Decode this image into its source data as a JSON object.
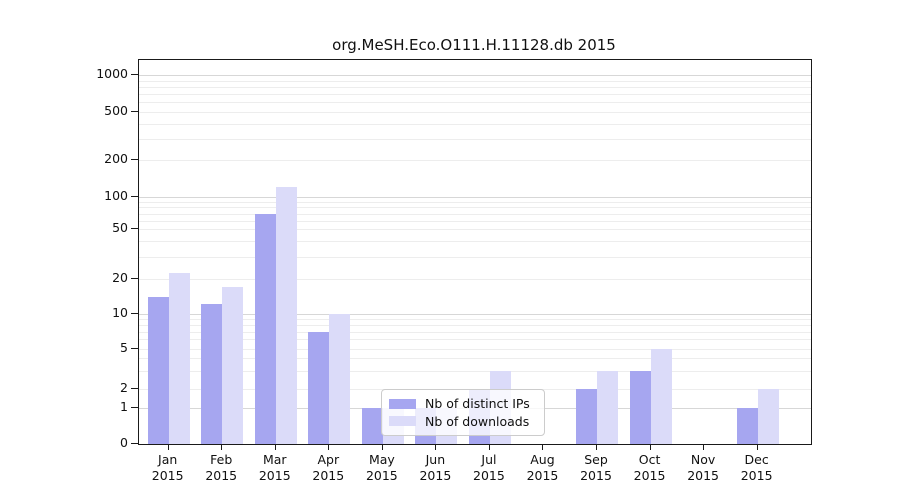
{
  "chart_data": {
    "type": "bar",
    "title": "org.MeSH.Eco.O111.H.11128.db 2015",
    "year_label": "2015",
    "categories": [
      "Jan",
      "Feb",
      "Mar",
      "Apr",
      "May",
      "Jun",
      "Jul",
      "Aug",
      "Sep",
      "Oct",
      "Nov",
      "Dec"
    ],
    "series": [
      {
        "name": "Nb of distinct IPs",
        "color": "#a6a6f0",
        "values": [
          14,
          12,
          70,
          7,
          1,
          1,
          2,
          0,
          2,
          3,
          0,
          1
        ]
      },
      {
        "name": "Nb of downloads",
        "color": "#dbdbf9",
        "values": [
          22,
          17,
          120,
          10,
          1,
          1,
          3,
          0,
          3,
          5,
          0,
          2
        ]
      }
    ],
    "yaxis": {
      "scale": "log-like with labeled ticks",
      "ticks": [
        0,
        1,
        2,
        5,
        10,
        20,
        50,
        100,
        200,
        500,
        1000
      ],
      "ylim": [
        0,
        1300
      ]
    },
    "xlabel": "",
    "ylabel": "",
    "grid": "horizontal, minor log gridlines",
    "legend_position": "lower center inside plot"
  },
  "colors": {
    "bar_dark": "#a6a6f0",
    "bar_light": "#dbdbf9",
    "grid_major": "#d7d7d7",
    "grid_minor": "#ededed",
    "spine": "#1a1a1a",
    "legend_border": "#cccccc"
  }
}
